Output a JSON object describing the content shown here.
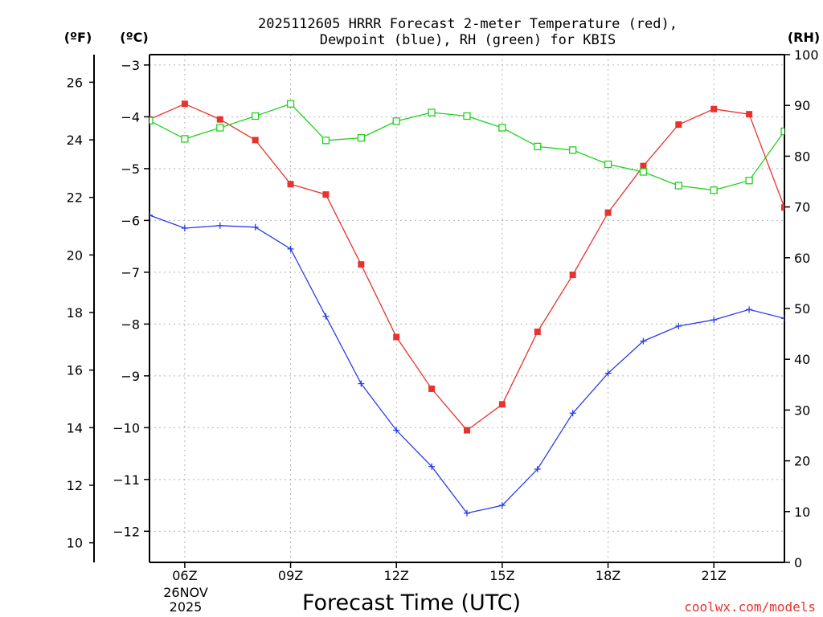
{
  "chart_data": {
    "type": "line",
    "title": "2025112605 HRRR Forecast 2-meter Temperature (red),",
    "subtitle": "Dewpoint (blue), RH (green) for KBIS",
    "xlabel": "Forecast Time (UTC)",
    "ylabel_left_f": "(ºF)",
    "ylabel_left_c": "(ºC)",
    "ylabel_right": "(RH)",
    "x_hours": [
      5,
      6,
      7,
      8,
      9,
      10,
      11,
      12,
      13,
      14,
      15,
      16,
      17,
      18,
      19,
      20,
      21,
      22,
      23
    ],
    "xlim": [
      5,
      23
    ],
    "x_ticks": [
      {
        "hour": 6,
        "label": "06Z"
      },
      {
        "hour": 9,
        "label": "09Z"
      },
      {
        "hour": 12,
        "label": "12Z"
      },
      {
        "hour": 15,
        "label": "15Z"
      },
      {
        "hour": 18,
        "label": "18Z"
      },
      {
        "hour": 21,
        "label": "21Z"
      }
    ],
    "date_label_line1": "26NOV",
    "date_label_line2": "2025",
    "ylim_c": [
      -12.6,
      -2.8
    ],
    "c_ticks": [
      {
        "v": -3,
        "label": "−3"
      },
      {
        "v": -4,
        "label": "−4"
      },
      {
        "v": -5,
        "label": "−5"
      },
      {
        "v": -6,
        "label": "−6"
      },
      {
        "v": -7,
        "label": "−7"
      },
      {
        "v": -8,
        "label": "−8"
      },
      {
        "v": -9,
        "label": "−9"
      },
      {
        "v": -10,
        "label": "−10"
      },
      {
        "v": -11,
        "label": "−11"
      },
      {
        "v": -12,
        "label": "−12"
      }
    ],
    "f_ticks": [
      10,
      12,
      14,
      16,
      18,
      20,
      22,
      24,
      26
    ],
    "ylim_rh": [
      0,
      100
    ],
    "rh_ticks": [
      0,
      10,
      20,
      30,
      40,
      50,
      60,
      70,
      80,
      90,
      100
    ],
    "series": [
      {
        "name": "Temperature",
        "units": "°C",
        "axis": "c",
        "color": "#e8322e",
        "marker": "filled-square",
        "values": [
          -4.05,
          -3.75,
          -4.05,
          -4.45,
          -5.3,
          -5.5,
          -6.85,
          -8.25,
          -9.25,
          -10.05,
          -9.55,
          -8.15,
          -7.05,
          -5.85,
          -4.95,
          -4.15,
          -3.85,
          -3.95,
          -5.75
        ]
      },
      {
        "name": "Dewpoint",
        "units": "°C",
        "axis": "c",
        "color": "#2b3ee6",
        "marker": "plus",
        "values": [
          -5.9,
          -6.15,
          -6.1,
          -6.13,
          -6.55,
          -7.85,
          -9.15,
          -10.05,
          -10.75,
          -11.65,
          -11.5,
          -10.8,
          -9.72,
          -8.95,
          -8.33,
          -8.04,
          -7.92,
          -7.72,
          -7.89
        ]
      },
      {
        "name": "RH",
        "units": "%",
        "axis": "rh",
        "color": "#1fd21f",
        "marker": "open-square",
        "values": [
          87,
          83.4,
          85.6,
          87.9,
          90.3,
          83.1,
          83.6,
          86.9,
          88.6,
          87.9,
          85.6,
          81.9,
          81.2,
          78.4,
          76.9,
          74.2,
          73.3,
          75.2,
          84.9
        ]
      }
    ],
    "credit": "coolwx.com/models"
  }
}
